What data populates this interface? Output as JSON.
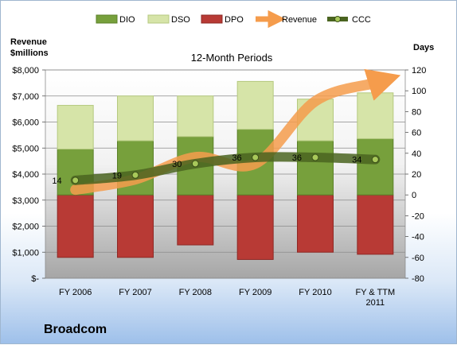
{
  "chart_data": {
    "type": "bar",
    "title": "12-Month Periods",
    "left_axis_label": [
      "Revenue",
      "$millions"
    ],
    "right_axis_label": "Days",
    "categories": [
      "FY 2006",
      "FY 2007",
      "FY 2008",
      "FY 2009",
      "FY 2010",
      "FY & TTM 2011"
    ],
    "left_ticks": [
      "$8,000",
      "$7,000",
      "$6,000",
      "$5,000",
      "$4,000",
      "$3,000",
      "$2,000",
      "$1,000",
      "$-"
    ],
    "right_ticks": [
      "120",
      "100",
      "80",
      "60",
      "40",
      "20",
      "0",
      "-20",
      "-40",
      "-60",
      "-80"
    ],
    "left_ylim": [
      0,
      8000
    ],
    "right_ylim": [
      -80,
      120
    ],
    "legend_position": "top",
    "series": [
      {
        "name": "DIO",
        "type": "bar",
        "axis": "right",
        "color": "#77a03c",
        "values": [
          44,
          52,
          56,
          63,
          52,
          54
        ]
      },
      {
        "name": "DSO",
        "type": "bar",
        "axis": "right",
        "color": "#d6e4a8",
        "values": [
          42,
          43,
          39,
          46,
          40,
          44
        ]
      },
      {
        "name": "DPO",
        "type": "bar",
        "axis": "right",
        "color": "#b83a35",
        "values": [
          -60,
          -60,
          -48,
          -62,
          -55,
          -57
        ]
      },
      {
        "name": "Revenue",
        "type": "line",
        "axis": "left",
        "color": "#f59c4c",
        "values": [
          3400,
          3800,
          4650,
          4400,
          6800,
          7500
        ]
      },
      {
        "name": "CCC",
        "type": "line",
        "axis": "right",
        "color": "#4a6420",
        "values": [
          14,
          19,
          30,
          36,
          36,
          34
        ]
      }
    ],
    "data_labels": [
      "14",
      "19",
      "30",
      "36",
      "36",
      "34"
    ]
  },
  "company": "Broadcom"
}
